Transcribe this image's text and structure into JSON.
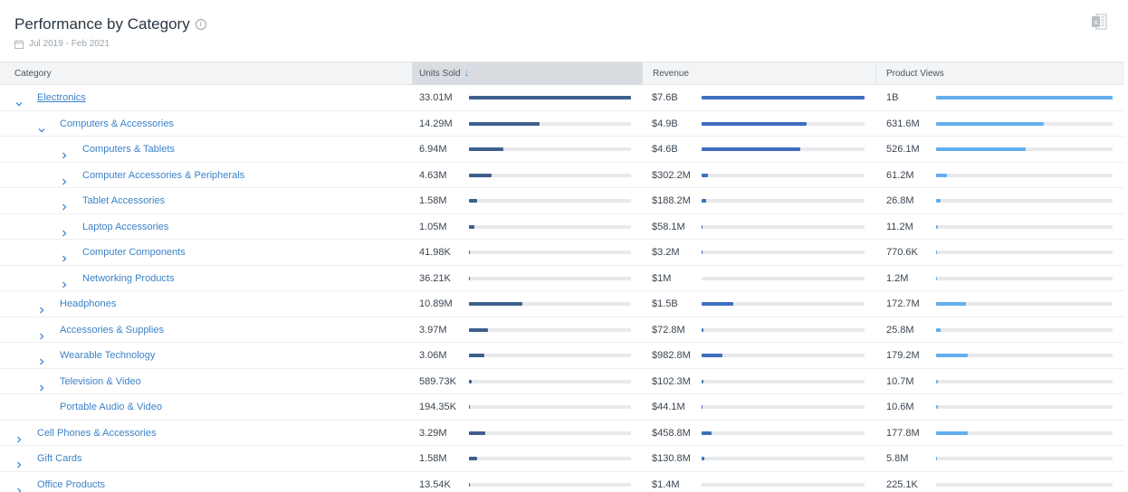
{
  "header": {
    "title": "Performance by Category",
    "date_range": "Jul 2019 - Feb 2021",
    "icons": [
      "info-icon",
      "calendar-icon",
      "excel-export-icon"
    ]
  },
  "columns": {
    "category": "Category",
    "units_sold": "Units Sold",
    "revenue": "Revenue",
    "product_views": "Product Views",
    "sorted_by": "units_sold",
    "sort_direction": "descending"
  },
  "colors": {
    "units_bar": "#3d5f8c",
    "revenue_bar": "#3f6fbf",
    "views_bar": "#64aeef",
    "link": "#3c82c9"
  },
  "rows": [
    {
      "label": "Electronics",
      "level": 0,
      "expander": "expanded",
      "link": true,
      "units": "33.01M",
      "units_frac": 1.0,
      "revenue": "$7.6B",
      "revenue_frac": 1.0,
      "views": "1B",
      "views_frac": 1.0
    },
    {
      "label": "Computers & Accessories",
      "level": 1,
      "expander": "expanded",
      "link": false,
      "units": "14.29M",
      "units_frac": 0.433,
      "revenue": "$4.9B",
      "revenue_frac": 0.645,
      "views": "631.6M",
      "views_frac": 0.61
    },
    {
      "label": "Computers & Tablets",
      "level": 2,
      "expander": "collapsed",
      "link": false,
      "units": "6.94M",
      "units_frac": 0.21,
      "revenue": "$4.6B",
      "revenue_frac": 0.605,
      "views": "526.1M",
      "views_frac": 0.51
    },
    {
      "label": "Computer Accessories & Peripherals",
      "level": 2,
      "expander": "collapsed",
      "link": false,
      "units": "4.63M",
      "units_frac": 0.14,
      "revenue": "$302.2M",
      "revenue_frac": 0.04,
      "views": "61.2M",
      "views_frac": 0.06
    },
    {
      "label": "Tablet Accessories",
      "level": 2,
      "expander": "collapsed",
      "link": false,
      "units": "1.58M",
      "units_frac": 0.048,
      "revenue": "$188.2M",
      "revenue_frac": 0.025,
      "views": "26.8M",
      "views_frac": 0.027
    },
    {
      "label": "Laptop Accessories",
      "level": 2,
      "expander": "collapsed",
      "link": false,
      "units": "1.05M",
      "units_frac": 0.032,
      "revenue": "$58.1M",
      "revenue_frac": 0.0076,
      "views": "11.2M",
      "views_frac": 0.011
    },
    {
      "label": "Computer Components",
      "level": 2,
      "expander": "collapsed",
      "link": false,
      "units": "41.98K",
      "units_frac": 0.0013,
      "revenue": "$3.2M",
      "revenue_frac": 0.0004,
      "views": "770.6K",
      "views_frac": 0.0008
    },
    {
      "label": "Networking Products",
      "level": 2,
      "expander": "collapsed",
      "link": false,
      "units": "36.21K",
      "units_frac": 0.0011,
      "revenue": "$1M",
      "revenue_frac": 0.0001,
      "views": "1.2M",
      "views_frac": 0.0012
    },
    {
      "label": "Headphones",
      "level": 1,
      "expander": "collapsed",
      "link": false,
      "units": "10.89M",
      "units_frac": 0.33,
      "revenue": "$1.5B",
      "revenue_frac": 0.197,
      "views": "172.7M",
      "views_frac": 0.17
    },
    {
      "label": "Accessories & Supplies",
      "level": 1,
      "expander": "collapsed",
      "link": false,
      "units": "3.97M",
      "units_frac": 0.12,
      "revenue": "$72.8M",
      "revenue_frac": 0.0096,
      "views": "25.8M",
      "views_frac": 0.026
    },
    {
      "label": "Wearable Technology",
      "level": 1,
      "expander": "collapsed",
      "link": false,
      "units": "3.06M",
      "units_frac": 0.093,
      "revenue": "$982.8M",
      "revenue_frac": 0.129,
      "views": "179.2M",
      "views_frac": 0.18
    },
    {
      "label": "Television & Video",
      "level": 1,
      "expander": "collapsed",
      "link": false,
      "units": "589.73K",
      "units_frac": 0.018,
      "revenue": "$102.3M",
      "revenue_frac": 0.0135,
      "views": "10.7M",
      "views_frac": 0.0107
    },
    {
      "label": "Portable Audio & Video",
      "level": 1,
      "expander": "none",
      "link": false,
      "units": "194.35K",
      "units_frac": 0.0059,
      "revenue": "$44.1M",
      "revenue_frac": 0.0058,
      "views": "10.6M",
      "views_frac": 0.0106
    },
    {
      "label": "Cell Phones & Accessories",
      "level": 0,
      "expander": "collapsed",
      "link": false,
      "units": "3.29M",
      "units_frac": 0.1,
      "revenue": "$458.8M",
      "revenue_frac": 0.06,
      "views": "177.8M",
      "views_frac": 0.178
    },
    {
      "label": "Gift Cards",
      "level": 0,
      "expander": "collapsed",
      "link": false,
      "units": "1.58M",
      "units_frac": 0.048,
      "revenue": "$130.8M",
      "revenue_frac": 0.017,
      "views": "5.8M",
      "views_frac": 0.0058
    },
    {
      "label": "Office Products",
      "level": 0,
      "expander": "collapsed",
      "link": false,
      "units": "13.54K",
      "units_frac": 0.0004,
      "revenue": "$1.4M",
      "revenue_frac": 0.0002,
      "views": "225.1K",
      "views_frac": 0.0002
    }
  ]
}
